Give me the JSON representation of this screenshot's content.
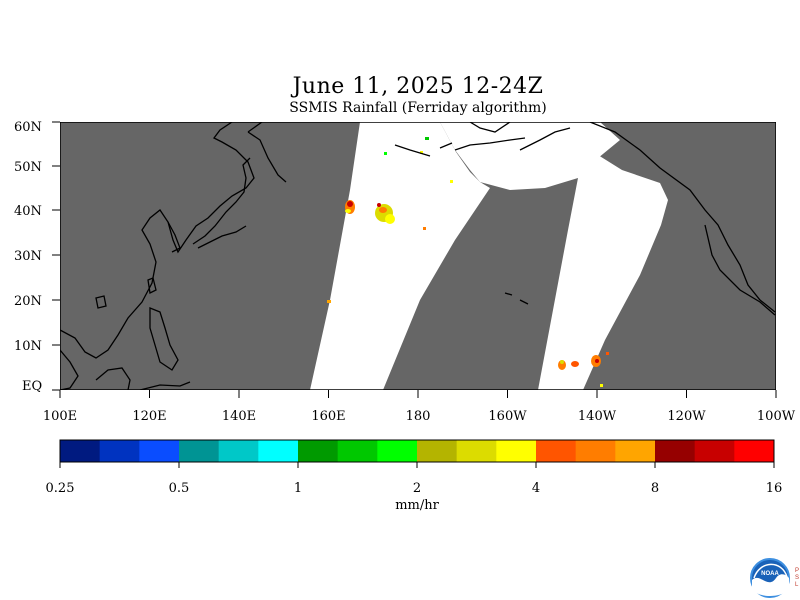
{
  "map": {
    "title": "June 11, 2025 12-24Z",
    "subtitle": "SSMIS Rainfall (Ferriday algorithm)",
    "lat_ticks": [
      "60N",
      "50N",
      "40N",
      "30N",
      "20N",
      "10N",
      "EQ"
    ],
    "lon_ticks": [
      "100E",
      "120E",
      "140E",
      "160E",
      "180",
      "160W",
      "140W",
      "120W",
      "100W"
    ],
    "background_color": "#666666",
    "no_data_color": "#ffffff",
    "coastline_color": "#000000"
  },
  "colorbar": {
    "colors": [
      "#001a80",
      "#0033c0",
      "#0a4dff",
      "#009494",
      "#00c8c8",
      "#00ffff",
      "#009a00",
      "#00c800",
      "#00ff00",
      "#b4b400",
      "#dcdc00",
      "#ffff00",
      "#ff5500",
      "#ff7d00",
      "#ffa500",
      "#960000",
      "#c80000",
      "#ff0000"
    ],
    "tick_labels": [
      "0.25",
      "0.5",
      "1",
      "2",
      "4",
      "8",
      "16"
    ],
    "unit": "mm/hr"
  },
  "logo": {
    "text": "NOAA",
    "side_text": "PSL",
    "icon": "noaa-logo-icon"
  }
}
